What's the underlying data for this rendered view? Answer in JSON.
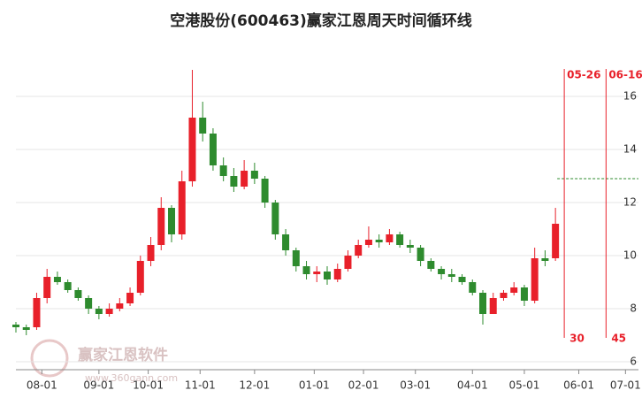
{
  "chart_data": {
    "type": "candlestick",
    "title": "空港股份(600463)赢家江恩周天时间循环线",
    "watermark": [
      "赢家江恩软件",
      "www.360gann.com"
    ],
    "xlim": [
      0,
      240
    ],
    "xticks": [
      {
        "value": 10,
        "label": "08-01"
      },
      {
        "value": 32,
        "label": "09-01"
      },
      {
        "value": 51,
        "label": "10-01"
      },
      {
        "value": 71,
        "label": "11-01"
      },
      {
        "value": 92,
        "label": "12-01"
      },
      {
        "value": 115,
        "label": "01-01"
      },
      {
        "value": 134,
        "label": "02-01"
      },
      {
        "value": 154,
        "label": "03-01"
      },
      {
        "value": 176,
        "label": "04-01"
      },
      {
        "value": 196,
        "label": "05-01"
      },
      {
        "value": 217,
        "label": "06-01"
      },
      {
        "value": 235,
        "label": "07-01"
      }
    ],
    "ylim": [
      5.7,
      18
    ],
    "yticks": [
      6,
      8,
      10,
      12,
      14,
      16
    ],
    "up_color": "#e8202a",
    "down_color": "#2e8b2e",
    "series": [
      {
        "x": [
          0,
          4,
          8,
          12,
          16,
          20,
          24,
          28,
          32,
          36,
          40,
          44,
          48,
          52,
          56,
          60,
          64,
          68,
          72,
          76,
          80,
          84,
          88,
          92,
          96,
          100,
          104,
          108,
          112,
          116,
          120,
          124,
          128,
          132,
          136,
          140,
          144,
          148,
          152,
          156,
          160,
          164,
          168,
          172,
          176,
          180,
          184,
          188,
          192,
          196,
          200,
          204,
          208
        ],
        "open": [
          7.4,
          7.3,
          7.3,
          8.4,
          9.2,
          9.0,
          8.7,
          8.4,
          8.0,
          7.8,
          8.0,
          8.2,
          8.6,
          9.8,
          10.4,
          11.8,
          10.8,
          12.8,
          15.2,
          14.6,
          13.4,
          13.0,
          12.6,
          13.2,
          12.9,
          12.0,
          10.8,
          10.2,
          9.6,
          9.3,
          9.4,
          9.1,
          9.5,
          10.0,
          10.4,
          10.6,
          10.5,
          10.8,
          10.4,
          10.3,
          9.8,
          9.5,
          9.3,
          9.2,
          9.0,
          8.6,
          7.8,
          8.4,
          8.6,
          8.8,
          8.3,
          9.9,
          9.9
        ],
        "high": [
          7.5,
          7.4,
          8.6,
          9.5,
          9.4,
          9.1,
          8.8,
          8.5,
          8.1,
          8.2,
          8.4,
          8.8,
          10.0,
          10.7,
          12.2,
          11.9,
          13.2,
          17.0,
          15.8,
          14.8,
          13.7,
          13.3,
          13.6,
          13.5,
          13.0,
          12.1,
          11.0,
          10.3,
          9.8,
          9.6,
          9.6,
          9.7,
          10.2,
          10.6,
          11.1,
          10.8,
          11.0,
          10.9,
          10.6,
          10.4,
          9.9,
          9.6,
          9.5,
          9.3,
          9.1,
          8.7,
          8.6,
          8.7,
          9.0,
          8.9,
          10.3,
          10.2,
          11.8
        ],
        "low": [
          7.1,
          7.0,
          7.2,
          8.2,
          8.9,
          8.6,
          8.3,
          7.8,
          7.6,
          7.7,
          7.9,
          8.1,
          8.5,
          9.6,
          10.2,
          10.5,
          10.6,
          12.6,
          14.3,
          13.2,
          12.8,
          12.4,
          12.5,
          12.7,
          11.8,
          10.6,
          10.0,
          9.4,
          9.1,
          9.0,
          8.9,
          9.0,
          9.4,
          9.9,
          10.3,
          10.3,
          10.4,
          10.3,
          10.1,
          9.6,
          9.4,
          9.1,
          9.0,
          8.9,
          8.5,
          7.4,
          7.8,
          8.3,
          8.5,
          8.1,
          8.2,
          9.6,
          9.8
        ],
        "close": [
          7.3,
          7.2,
          8.4,
          9.2,
          9.0,
          8.7,
          8.4,
          8.0,
          7.8,
          8.0,
          8.2,
          8.6,
          9.8,
          10.4,
          11.8,
          10.8,
          12.8,
          15.2,
          14.6,
          13.4,
          13.0,
          12.6,
          13.2,
          12.9,
          12.0,
          10.8,
          10.2,
          9.6,
          9.3,
          9.4,
          9.1,
          9.5,
          10.0,
          10.4,
          10.6,
          10.5,
          10.8,
          10.4,
          10.3,
          9.8,
          9.5,
          9.3,
          9.2,
          9.0,
          8.6,
          7.8,
          8.4,
          8.6,
          8.8,
          8.3,
          9.9,
          9.8,
          11.2
        ]
      }
    ],
    "hline": 12.9,
    "cycle_lines": [
      {
        "x": 211.4,
        "label": "05-26",
        "count": 30
      },
      {
        "x": 227.5,
        "label": "06-16",
        "count": 45
      }
    ]
  }
}
